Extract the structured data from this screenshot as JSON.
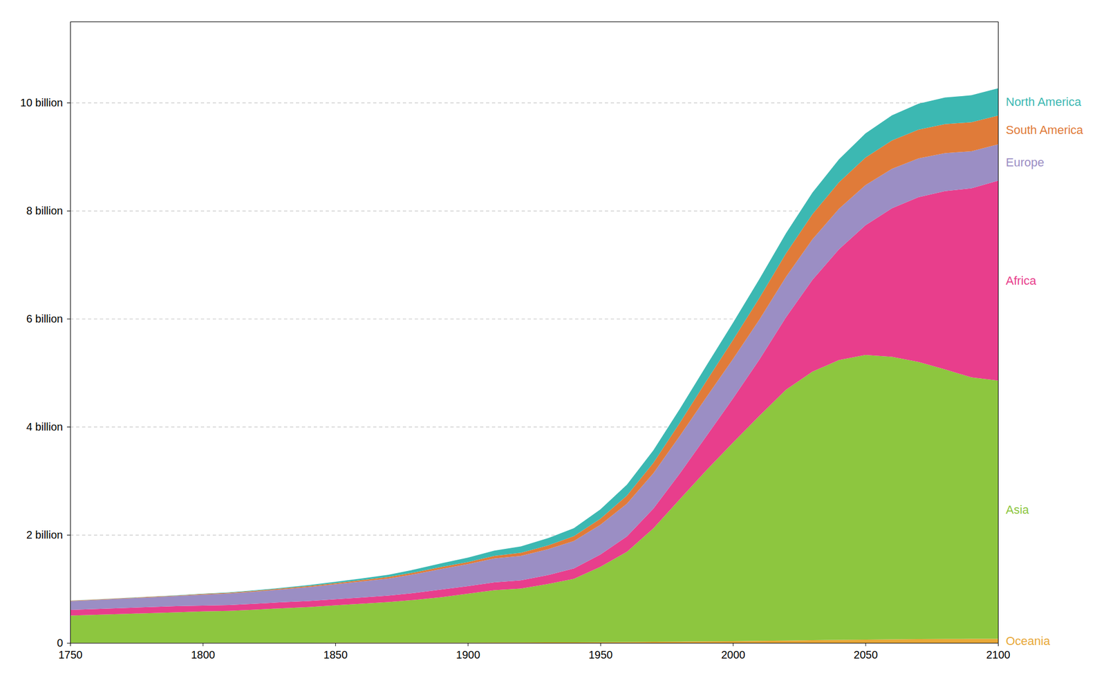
{
  "chart_data": {
    "type": "area",
    "stacked": true,
    "grid": true,
    "x": [
      1750,
      1760,
      1770,
      1780,
      1790,
      1800,
      1810,
      1820,
      1830,
      1840,
      1850,
      1860,
      1870,
      1880,
      1890,
      1900,
      1910,
      1920,
      1930,
      1940,
      1950,
      1960,
      1970,
      1980,
      1990,
      2000,
      2010,
      2020,
      2030,
      2040,
      2050,
      2060,
      2070,
      2080,
      2090,
      2100
    ],
    "series": [
      {
        "name": "Oceania",
        "color": "#e8a838",
        "values": [
          0.002,
          0.002,
          0.002,
          0.002,
          0.002,
          0.002,
          0.003,
          0.003,
          0.003,
          0.003,
          0.004,
          0.004,
          0.005,
          0.005,
          0.006,
          0.006,
          0.007,
          0.008,
          0.01,
          0.011,
          0.013,
          0.016,
          0.019,
          0.023,
          0.027,
          0.031,
          0.037,
          0.043,
          0.049,
          0.055,
          0.06,
          0.065,
          0.069,
          0.072,
          0.074,
          0.075
        ]
      },
      {
        "name": "Asia",
        "color": "#8dc63f",
        "values": [
          0.502,
          0.517,
          0.533,
          0.549,
          0.564,
          0.58,
          0.59,
          0.613,
          0.638,
          0.66,
          0.69,
          0.72,
          0.75,
          0.79,
          0.84,
          0.903,
          0.967,
          0.997,
          1.078,
          1.175,
          1.394,
          1.668,
          2.102,
          2.636,
          3.168,
          3.673,
          4.165,
          4.641,
          4.97,
          5.18,
          5.27,
          5.23,
          5.13,
          4.99,
          4.84,
          4.78
        ]
      },
      {
        "name": "Africa",
        "color": "#e83e8c",
        "values": [
          0.106,
          0.108,
          0.11,
          0.112,
          0.114,
          0.107,
          0.107,
          0.109,
          0.111,
          0.113,
          0.114,
          0.117,
          0.12,
          0.13,
          0.141,
          0.141,
          0.145,
          0.153,
          0.164,
          0.191,
          0.228,
          0.285,
          0.363,
          0.479,
          0.632,
          0.818,
          1.044,
          1.341,
          1.7,
          2.05,
          2.4,
          2.75,
          3.05,
          3.3,
          3.5,
          3.7
        ]
      },
      {
        "name": "Europe",
        "color": "#9b8ec4",
        "values": [
          0.163,
          0.168,
          0.174,
          0.18,
          0.187,
          0.203,
          0.214,
          0.224,
          0.238,
          0.256,
          0.276,
          0.296,
          0.316,
          0.348,
          0.381,
          0.408,
          0.444,
          0.453,
          0.477,
          0.509,
          0.549,
          0.605,
          0.657,
          0.694,
          0.721,
          0.73,
          0.738,
          0.748,
          0.752,
          0.749,
          0.742,
          0.731,
          0.718,
          0.703,
          0.687,
          0.672
        ]
      },
      {
        "name": "South America",
        "color": "#e07b39",
        "values": [
          0.008,
          0.008,
          0.008,
          0.009,
          0.009,
          0.012,
          0.014,
          0.015,
          0.017,
          0.02,
          0.022,
          0.025,
          0.028,
          0.033,
          0.038,
          0.038,
          0.046,
          0.056,
          0.07,
          0.09,
          0.114,
          0.15,
          0.192,
          0.243,
          0.3,
          0.354,
          0.4,
          0.434,
          0.464,
          0.49,
          0.51,
          0.524,
          0.533,
          0.537,
          0.537,
          0.534
        ]
      },
      {
        "name": "North America",
        "color": "#3cb8b2",
        "values": [
          0.002,
          0.003,
          0.003,
          0.004,
          0.005,
          0.007,
          0.008,
          0.01,
          0.013,
          0.017,
          0.023,
          0.031,
          0.04,
          0.053,
          0.066,
          0.082,
          0.099,
          0.117,
          0.135,
          0.146,
          0.172,
          0.204,
          0.232,
          0.258,
          0.284,
          0.316,
          0.351,
          0.374,
          0.401,
          0.426,
          0.448,
          0.466,
          0.481,
          0.492,
          0.499,
          0.503
        ]
      }
    ],
    "xlim": [
      1750,
      2100
    ],
    "ylim": [
      0,
      11.5
    ],
    "xticks": [
      1750,
      1800,
      1850,
      1900,
      1950,
      2000,
      2050,
      2100
    ],
    "yticks": [
      0,
      {
        "value": 2,
        "label": "2 billion"
      },
      {
        "value": 4,
        "label": "4 billion"
      },
      {
        "value": 6,
        "label": "6 billion"
      },
      {
        "value": 8,
        "label": "8 billion"
      },
      {
        "value": 10,
        "label": "10 billion"
      }
    ]
  }
}
